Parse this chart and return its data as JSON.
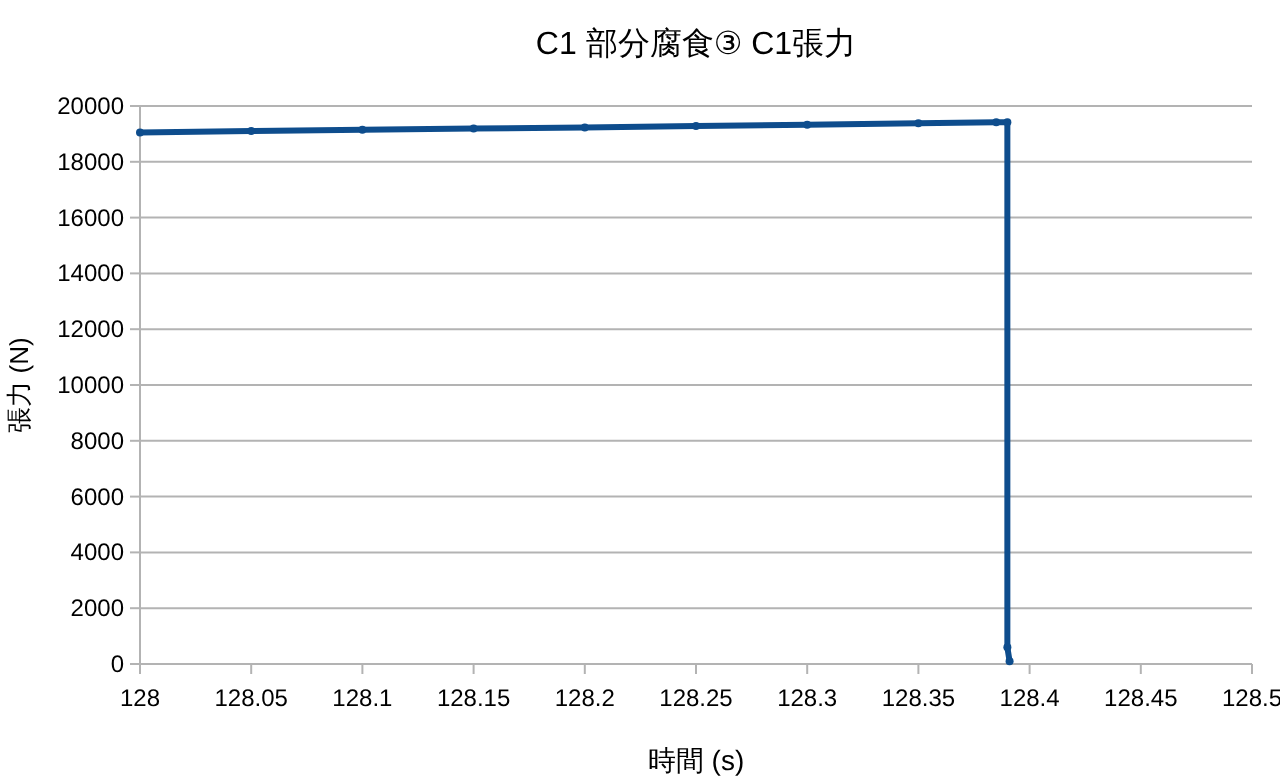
{
  "chart_data": {
    "type": "line",
    "title": "C1 部分腐食③ C1張力",
    "xlabel": "時間 (s)",
    "ylabel": "張力 (N)",
    "series": [
      {
        "color": "#0e4d8d",
        "x": [
          128,
          128.05,
          128.1,
          128.15,
          128.2,
          128.25,
          128.3,
          128.35,
          128.385,
          128.39,
          128.39,
          128.391
        ],
        "values": [
          19050,
          19100,
          19150,
          19190,
          19230,
          19280,
          19330,
          19380,
          19420,
          19420,
          600,
          100
        ]
      }
    ],
    "xlim": [
      128,
      128.5
    ],
    "xticks": [
      128,
      128.05,
      128.1,
      128.15,
      128.2,
      128.25,
      128.3,
      128.35,
      128.4,
      128.45,
      128.5
    ],
    "ylim": [
      0,
      20000
    ],
    "yticks": [
      0,
      2000,
      4000,
      6000,
      8000,
      10000,
      12000,
      14000,
      16000,
      18000,
      20000
    ],
    "grid": "y",
    "marker": "circle",
    "line_style": "solid"
  }
}
